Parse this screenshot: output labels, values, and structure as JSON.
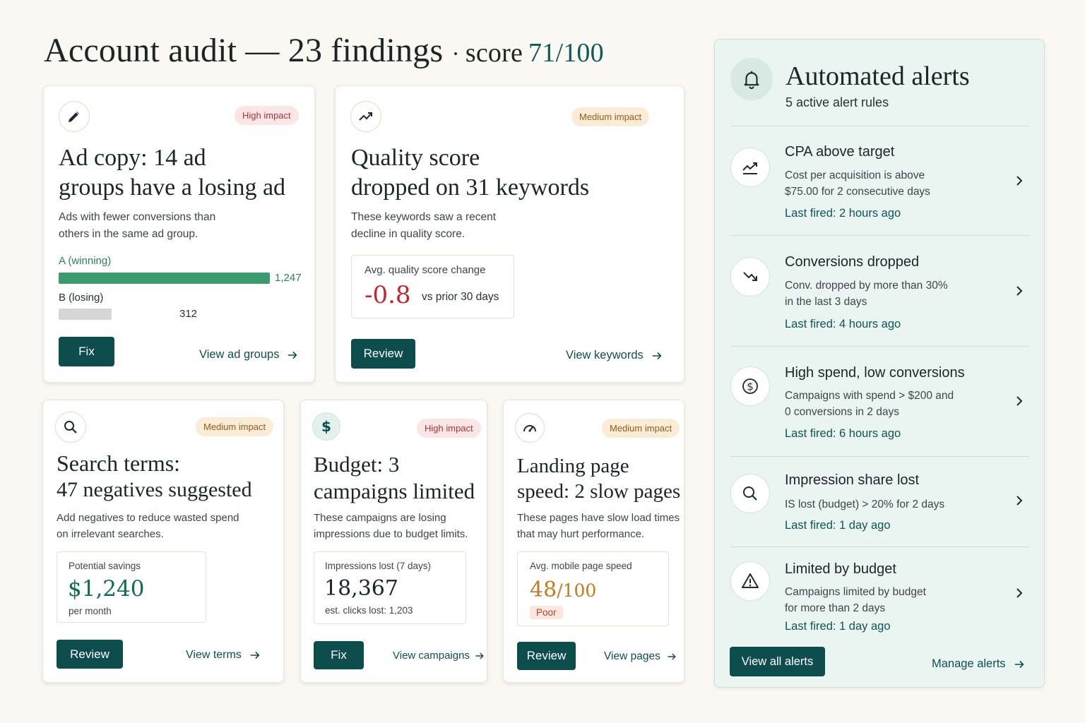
{
  "header": {
    "title": "Account audit — 23 findings",
    "score_label": "score",
    "score_value": "71/100"
  },
  "cards": {
    "ad_copy": {
      "icon": "pencil-icon",
      "badge": "High impact",
      "title_lines": [
        "Ad copy: 14 ad",
        "groups have a losing ad"
      ],
      "desc_lines": [
        "Ads with fewer conversions than",
        "others in the same ad group."
      ],
      "bars": [
        {
          "label": "A (winning)",
          "value": "1,247",
          "fraction": 1.0
        },
        {
          "label": "B (losing)",
          "value": "312",
          "fraction": 0.25
        }
      ],
      "button": "Fix",
      "link": "View ad groups"
    },
    "quality": {
      "icon": "trending-up-icon",
      "badge": "Medium impact",
      "title_lines": [
        "Quality score",
        "dropped on 31 keywords"
      ],
      "desc_lines": [
        "These keywords saw a recent",
        "decline in quality score."
      ],
      "stat_label": "Avg. quality score change",
      "stat_value": "-0.8",
      "stat_suffix": "vs prior 30 days",
      "button": "Review",
      "link": "View keywords"
    },
    "search": {
      "icon": "search-icon",
      "badge": "Medium impact",
      "title_lines": [
        "Search terms:",
        "47 negatives  suggested"
      ],
      "desc_lines": [
        "Add negatives to reduce wasted spend",
        "on irrelevant searches."
      ],
      "stat_label": "Potential savings",
      "stat_value": "$1,240",
      "stat_sub": "per month",
      "button": "Review",
      "link": "View terms"
    },
    "budget": {
      "icon": "dollar-icon",
      "badge": "High impact",
      "title_lines": [
        "Budget: 3",
        "campaigns limited"
      ],
      "desc_lines": [
        "These campaigns are losing",
        "impressions due to budget limits."
      ],
      "stat_label": "Impressions lost (7 days)",
      "stat_value": "18,367",
      "stat_sub": "est. clicks lost: 1,203",
      "button": "Fix",
      "link": "View campaigns"
    },
    "landing": {
      "icon": "gauge-icon",
      "badge": "Medium impact",
      "title_lines": [
        "Landing page",
        "speed: 2 slow pages"
      ],
      "desc_lines": [
        "These pages have slow load times",
        "that may hurt performance."
      ],
      "stat_label": "Avg. mobile page speed",
      "stat_value": "48",
      "stat_value_suffix": "/100",
      "stat_tag": "Poor",
      "button": "Review",
      "link": "View pages"
    }
  },
  "alerts": {
    "title": "Automated alerts",
    "subtitle": "5 active alert rules",
    "items": [
      {
        "icon": "trend-up-chart-icon",
        "title": "CPA above target",
        "desc_lines": [
          "Cost per acquisition is above",
          "$75.00 for 2 consecutive days"
        ],
        "fired": "Last fired: 2 hours ago"
      },
      {
        "icon": "trend-down-icon",
        "title": "Conversions dropped",
        "desc_lines": [
          "Conv. dropped by more than 30%",
          "in the last 3 days"
        ],
        "fired": "Last fired: 4 hours ago"
      },
      {
        "icon": "dollar-circle-icon",
        "title": "High spend, low conversions",
        "desc_lines": [
          "Campaigns with spend > $200 and",
          "0 conversions in 2 days"
        ],
        "fired": "Last fired: 6 hours ago"
      },
      {
        "icon": "search-icon",
        "title": "Impression share lost",
        "desc_lines": [
          "IS lost (budget) > 20% for 2 days"
        ],
        "fired": "Last fired: 1 day ago"
      },
      {
        "icon": "warning-icon",
        "title": "Limited by budget",
        "desc_lines": [
          "Campaigns limited by budget",
          "for more than 2 days"
        ],
        "fired": "Last fired: 1 day ago"
      }
    ],
    "view_all_button": "View all alerts",
    "manage_link": "Manage alerts"
  },
  "colors": {
    "brand": "#0d4d4e",
    "winning_bar": "#3d9a70",
    "losing_bar": "#d6d6d6",
    "negative": "#c8262c",
    "savings": "#0e6d4e",
    "warning": "#c9781b"
  }
}
